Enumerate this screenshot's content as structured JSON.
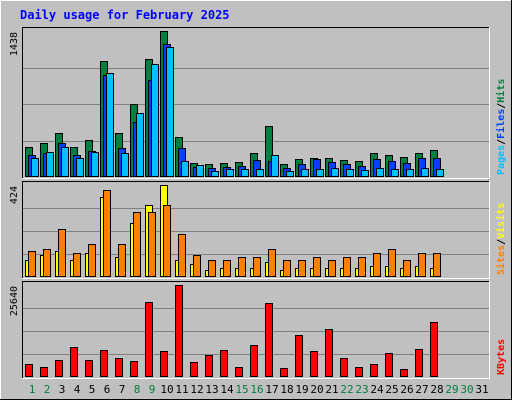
{
  "title": "Daily usage for February 2025",
  "colors": {
    "background": "#c0c0c0",
    "plot": "#c0c0c0",
    "title": "#0000ff",
    "hits": "#008040",
    "files": "#0040ff",
    "pages": "#00c0ff",
    "visits": "#ffff00",
    "sites": "#ff8000",
    "kbytes": "#ff0000",
    "weekday_label": "#000000",
    "weekend_label": "#008040"
  },
  "chart_data": {
    "type": "bar",
    "title": "Daily usage for February 2025",
    "categories": [
      "1",
      "2",
      "3",
      "4",
      "5",
      "6",
      "7",
      "8",
      "9",
      "10",
      "11",
      "12",
      "13",
      "14",
      "15",
      "16",
      "17",
      "18",
      "19",
      "20",
      "21",
      "22",
      "23",
      "24",
      "25",
      "26",
      "27",
      "28",
      "29",
      "30",
      "31"
    ],
    "weekend_days": [
      "1",
      "2",
      "8",
      "9",
      "15",
      "16",
      "22",
      "23",
      "29",
      "30"
    ],
    "panels": [
      {
        "id": "hits-files-pages",
        "max_label": "1438",
        "ymax": 1438,
        "legend": [
          {
            "text": "Pages",
            "color": "#00c0ff"
          },
          {
            "text": "/",
            "color": "#000000"
          },
          {
            "text": "Files",
            "color": "#0040ff"
          },
          {
            "text": "/",
            "color": "#000000"
          },
          {
            "text": "Hits",
            "color": "#008040"
          }
        ],
        "series": [
          {
            "name": "Hits",
            "color": "#008040",
            "values": [
              300,
              330,
              430,
              300,
              360,
              1140,
              430,
              720,
              1160,
              1438,
              390,
              140,
              130,
              140,
              150,
              240,
              500,
              130,
              180,
              190,
              190,
              170,
              160,
              240,
              220,
              200,
              240,
              270,
              0,
              0,
              0
            ]
          },
          {
            "name": "Files",
            "color": "#0040ff",
            "values": [
              220,
              240,
              330,
              220,
              260,
              1000,
              290,
              540,
              960,
              1310,
              290,
              100,
              90,
              100,
              110,
              170,
              160,
              90,
              130,
              180,
              150,
              130,
              110,
              180,
              160,
              140,
              190,
              190,
              0,
              0,
              0
            ]
          },
          {
            "name": "Pages",
            "color": "#00c0ff",
            "values": [
              190,
              250,
              300,
              190,
              250,
              1020,
              240,
              630,
              1110,
              1280,
              160,
              120,
              60,
              80,
              80,
              80,
              220,
              60,
              80,
              80,
              90,
              80,
              70,
              90,
              80,
              80,
              90,
              80,
              0,
              0,
              0
            ]
          }
        ]
      },
      {
        "id": "visits-sites",
        "max_label": "424",
        "ymax": 424,
        "legend": [
          {
            "text": "Sites",
            "color": "#ff8000"
          },
          {
            "text": "/",
            "color": "#000000"
          },
          {
            "text": "Visits",
            "color": "#ffff00"
          }
        ],
        "series": [
          {
            "name": "Visits",
            "color": "#ffff00",
            "values": [
              80,
              100,
              120,
              80,
              110,
              370,
              90,
              250,
              330,
              424,
              80,
              60,
              30,
              40,
              40,
              40,
              70,
              30,
              40,
              40,
              40,
              40,
              40,
              50,
              50,
              40,
              50,
              40,
              0,
              0,
              0
            ]
          },
          {
            "name": "Sites",
            "color": "#ff8000",
            "values": [
              120,
              130,
              220,
              110,
              150,
              400,
              150,
              300,
              300,
              330,
              200,
              100,
              80,
              80,
              90,
              90,
              130,
              80,
              80,
              90,
              80,
              90,
              90,
              110,
              130,
              80,
              110,
              110,
              0,
              0,
              0
            ]
          }
        ]
      },
      {
        "id": "kbytes",
        "max_label": "25640",
        "ymax": 25640,
        "legend": [
          {
            "text": "KBytes",
            "color": "#ff0000"
          }
        ],
        "series": [
          {
            "name": "KBytes",
            "color": "#ff0000",
            "values": [
              3700,
              2800,
              4800,
              8500,
              4800,
              7500,
              5300,
              4500,
              21000,
              7200,
              25640,
              4200,
              6200,
              7400,
              2800,
              8800,
              20500,
              2500,
              11800,
              7200,
              13500,
              5300,
              2900,
              3600,
              6800,
              2200,
              7700,
              15200,
              0,
              0,
              0
            ]
          }
        ]
      }
    ]
  }
}
